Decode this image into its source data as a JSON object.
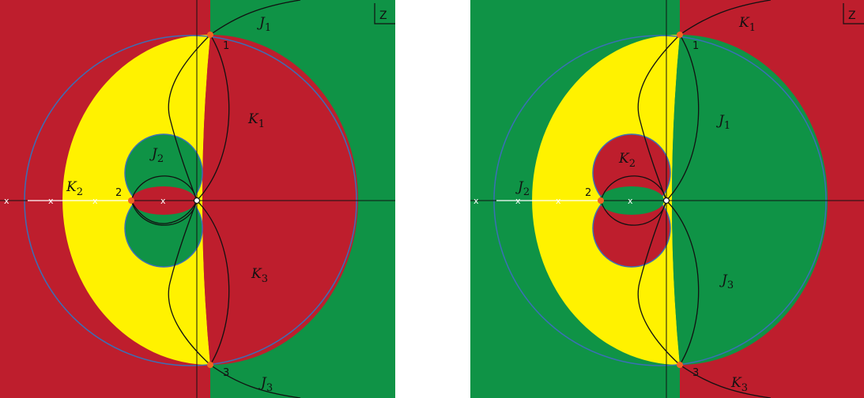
{
  "colors": {
    "red": "#BE1E2D",
    "green": "#0F9346",
    "yellow": "#FFF200",
    "orange_point": "#F26522",
    "curve": "#111111",
    "boundary": "#3B6FB6"
  },
  "left_panel": {
    "corner_label": "Z",
    "point_labels": [
      "1",
      "2",
      "3"
    ],
    "curve_labels": {
      "j1": {
        "letter": "J",
        "sub": "1"
      },
      "k1": {
        "letter": "K",
        "sub": "1"
      },
      "j2": {
        "letter": "J",
        "sub": "2"
      },
      "k2": {
        "letter": "K",
        "sub": "2"
      },
      "k3": {
        "letter": "K",
        "sub": "3"
      },
      "j3": {
        "letter": "J",
        "sub": "3"
      }
    },
    "pole_marks": [
      "x",
      "x",
      "x",
      "x"
    ]
  },
  "right_panel": {
    "corner_label": "Z",
    "point_labels": [
      "1",
      "2",
      "3"
    ],
    "curve_labels": {
      "k1": {
        "letter": "K",
        "sub": "1"
      },
      "j1": {
        "letter": "J",
        "sub": "1"
      },
      "k2": {
        "letter": "K",
        "sub": "2"
      },
      "j2": {
        "letter": "J",
        "sub": "2"
      },
      "j3": {
        "letter": "J",
        "sub": "3"
      },
      "k3": {
        "letter": "K",
        "sub": "3"
      }
    },
    "pole_marks": [
      "x",
      "x",
      "x",
      "x"
    ]
  }
}
